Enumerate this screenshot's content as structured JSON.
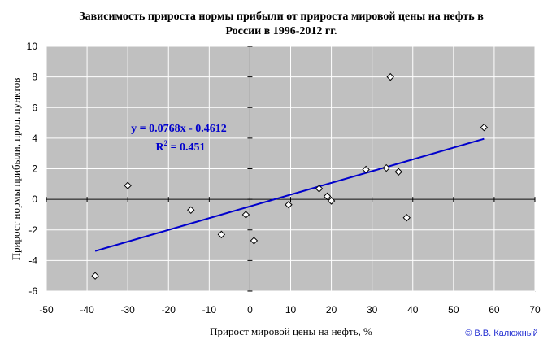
{
  "chart_data": {
    "type": "scatter",
    "title_lines": [
      "Зависимость прироста нормы прибыли от прироста мировой цены на нефть в",
      "России в 1996-2012 гг."
    ],
    "xlabel": "Прирост мировой цены на нефть, %",
    "ylabel": "Прирост нормы прибыли, проц. пунктов",
    "xlim": [
      -50,
      70
    ],
    "ylim": [
      -6,
      10
    ],
    "x_ticks": [
      -50,
      -40,
      -30,
      -20,
      -10,
      0,
      10,
      20,
      30,
      40,
      50,
      60,
      70
    ],
    "y_ticks": [
      -6,
      -4,
      -2,
      0,
      2,
      4,
      6,
      8,
      10
    ],
    "grid": true,
    "points": [
      {
        "x": -38,
        "y": -5.0
      },
      {
        "x": -30,
        "y": 0.9
      },
      {
        "x": -14.5,
        "y": -0.7
      },
      {
        "x": -7,
        "y": -2.3
      },
      {
        "x": -1,
        "y": -1.0
      },
      {
        "x": 1,
        "y": -2.7
      },
      {
        "x": 9.5,
        "y": -0.35
      },
      {
        "x": 17,
        "y": 0.7
      },
      {
        "x": 19,
        "y": 0.2
      },
      {
        "x": 20,
        "y": -0.1
      },
      {
        "x": 28.5,
        "y": 1.95
      },
      {
        "x": 33.5,
        "y": 2.05
      },
      {
        "x": 34.5,
        "y": 8.0
      },
      {
        "x": 36.5,
        "y": 1.8
      },
      {
        "x": 38.5,
        "y": -1.2
      },
      {
        "x": 57.5,
        "y": 4.7
      }
    ],
    "trendline": {
      "slope": 0.0768,
      "intercept": -0.4612,
      "x_range": [
        -38,
        57.5
      ]
    },
    "equation_text": "y = 0.0768x - 0.4612",
    "r2_prefix": "R",
    "r2_sup": "2",
    "r2_value": " = 0.451",
    "colors": {
      "plot_bg": "#c0c0c0",
      "grid": "#ffffff",
      "trend": "#0000cc",
      "marker_fill": "#ffffff",
      "marker_stroke": "#000000"
    }
  },
  "copyright": "© В.В. Калюжный"
}
